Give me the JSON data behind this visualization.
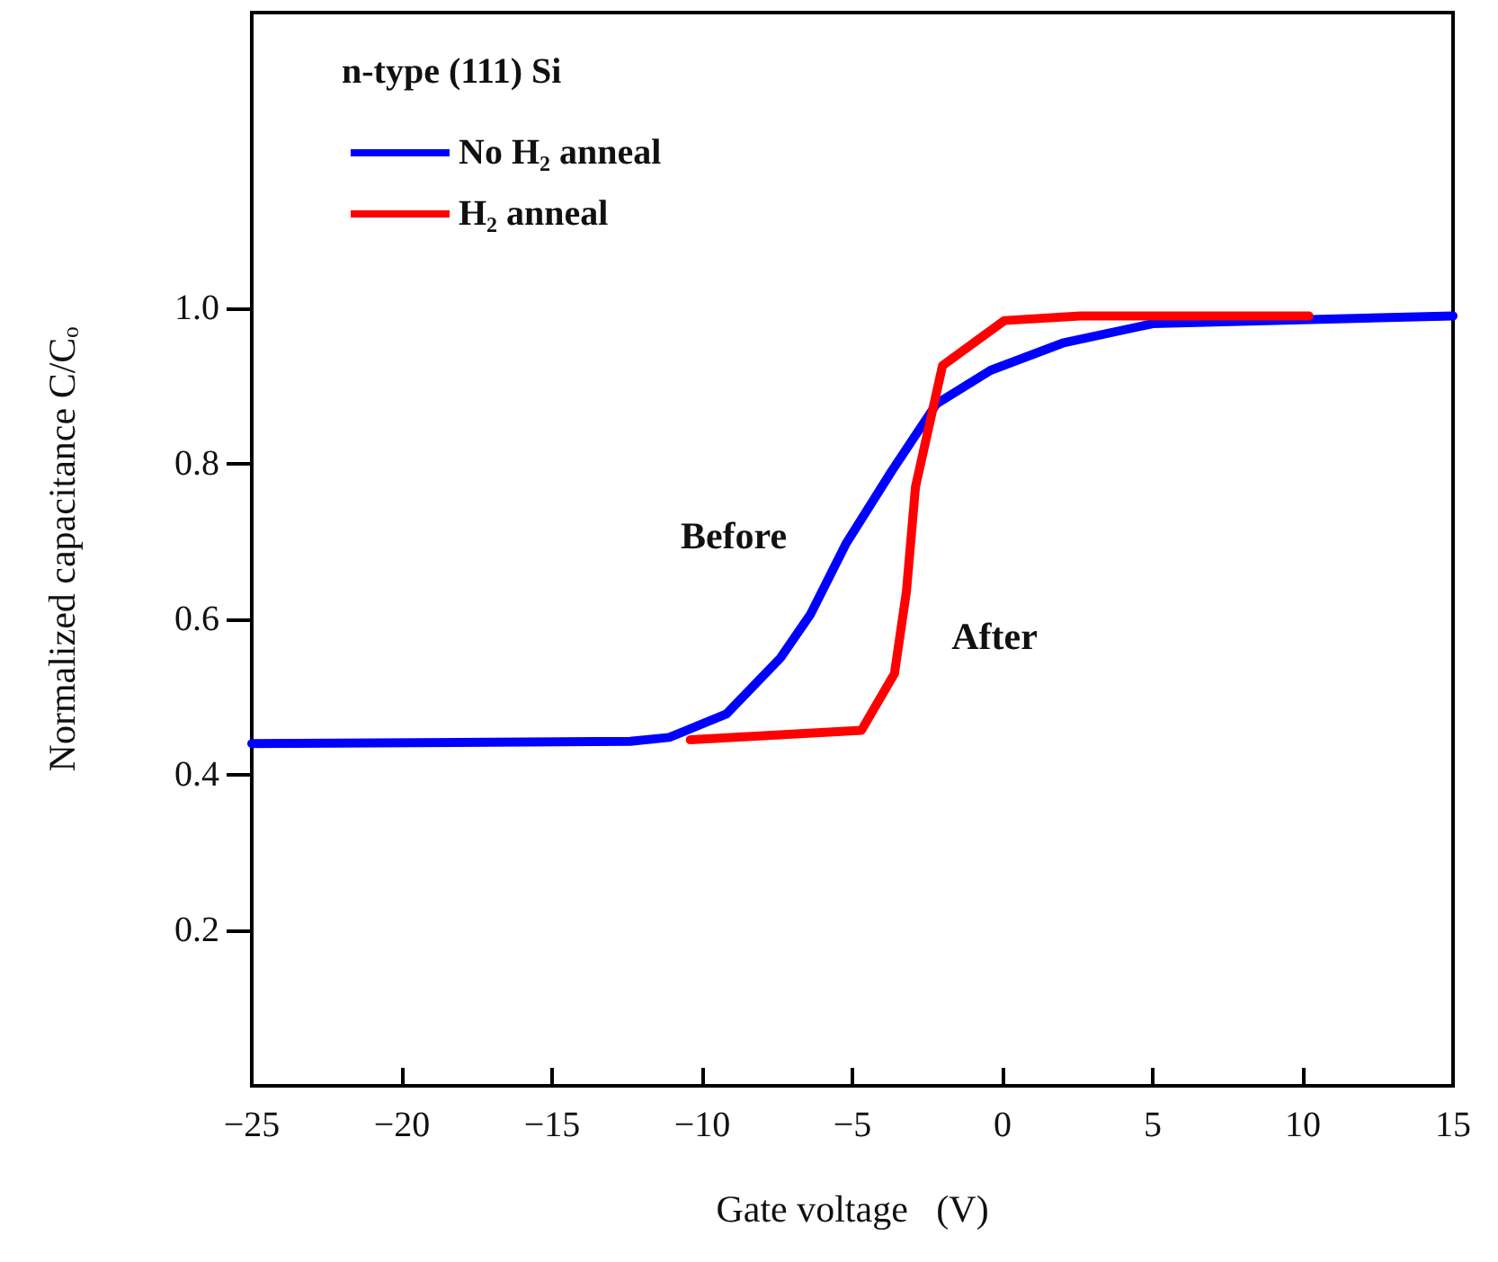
{
  "chart_data": {
    "type": "line",
    "xlabel": "Gate voltage   (V)",
    "ylabel": "Normalized capacitance C/Cₒ",
    "legend_title": "n-type (111) Si",
    "legend": "top left",
    "grid": false,
    "marker": "none",
    "line_style": "solid",
    "xlim": [
      -25,
      15
    ],
    "ylim": [
      0,
      1.38
    ],
    "xticks": [
      {
        "value": -25,
        "label": "−25"
      },
      {
        "value": -20,
        "label": "−20"
      },
      {
        "value": -15,
        "label": "−15"
      },
      {
        "value": -10,
        "label": "−10"
      },
      {
        "value": -5,
        "label": "−5"
      },
      0,
      5,
      10,
      15
    ],
    "yticks": [
      {
        "value": 0.2,
        "label": "0.2"
      },
      {
        "value": 0.4,
        "label": "0.4"
      },
      {
        "value": 0.6,
        "label": "0.6"
      },
      {
        "value": 0.8,
        "label": "0.8"
      },
      {
        "value": 1,
        "label": "1.0"
      }
    ],
    "series": [
      {
        "name": "No H₂ anneal",
        "color": "#0000ff",
        "x": [
          -25,
          -12.4,
          -11.1,
          -9.2,
          -7.4,
          -6.4,
          -5.2,
          -3.7,
          -2.2,
          -0.4,
          2,
          5,
          15
        ],
        "values": [
          0.44,
          0.443,
          0.448,
          0.478,
          0.55,
          0.606,
          0.698,
          0.79,
          0.877,
          0.92,
          0.955,
          0.98,
          0.99
        ]
      },
      {
        "name": "H₂ anneal",
        "color": "#ff0000",
        "x": [
          -10.4,
          -4.7,
          -3.6,
          -3.2,
          -2.9,
          -2,
          0.06,
          2.6,
          10.2
        ],
        "values": [
          0.445,
          0.457,
          0.53,
          0.636,
          0.77,
          0.926,
          0.984,
          0.99,
          0.99
        ]
      }
    ],
    "annotations": [
      "Before",
      "After"
    ]
  }
}
